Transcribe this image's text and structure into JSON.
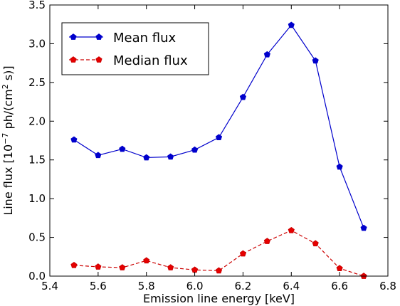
{
  "chart_data": {
    "type": "line",
    "xlabel": "Emission line energy [keV]",
    "ylabel": {
      "prefix": "Line flux [10",
      "exp1": "−7",
      "middle": " ph/(cm",
      "exp2": "2",
      "suffix": " s)]"
    },
    "xlim": [
      5.4,
      6.8
    ],
    "ylim": [
      0.0,
      3.5
    ],
    "x_ticks": [
      "5.4",
      "5.6",
      "5.8",
      "6.0",
      "6.2",
      "6.4",
      "6.6",
      "6.8"
    ],
    "y_ticks": [
      "0.0",
      "0.5",
      "1.0",
      "1.5",
      "2.0",
      "2.5",
      "3.0",
      "3.5"
    ],
    "grid": false,
    "legend_position": "top-left",
    "series": [
      {
        "name": "Mean flux",
        "color": "#0000cc",
        "line_style": "solid",
        "marker": "pentagon",
        "x": [
          5.5,
          5.6,
          5.7,
          5.8,
          5.9,
          6.0,
          6.1,
          6.2,
          6.3,
          6.4,
          6.5,
          6.6,
          6.7
        ],
        "y": [
          1.76,
          1.56,
          1.64,
          1.53,
          1.54,
          1.63,
          1.79,
          2.31,
          2.86,
          3.24,
          2.78,
          1.41,
          0.62
        ]
      },
      {
        "name": "Median flux",
        "color": "#cc0000",
        "marker_fill": "#e60000",
        "line_style": "dashed",
        "marker": "pentagon",
        "x": [
          5.5,
          5.6,
          5.7,
          5.8,
          5.9,
          6.0,
          6.1,
          6.2,
          6.3,
          6.4,
          6.5,
          6.6,
          6.7
        ],
        "y": [
          0.14,
          0.12,
          0.11,
          0.2,
          0.11,
          0.08,
          0.07,
          0.29,
          0.45,
          0.59,
          0.42,
          0.1,
          0.0
        ]
      }
    ]
  }
}
